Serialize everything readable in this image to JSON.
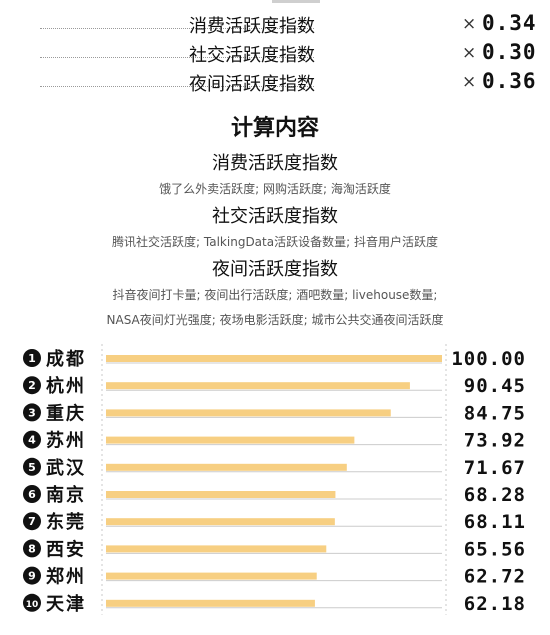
{
  "weights": [
    {
      "name": "消费活跃度指数",
      "x": "×",
      "value": "0.34"
    },
    {
      "name": "社交活跃度指数",
      "x": "×",
      "value": "0.30"
    },
    {
      "name": "夜间活跃度指数",
      "x": "×",
      "value": "0.36"
    }
  ],
  "calc": {
    "title": "计算内容",
    "items": [
      {
        "name": "消费活跃度指数",
        "desc": [
          "饿了么外卖活跃度; 网购活跃度; 海淘活跃度"
        ]
      },
      {
        "name": "社交活跃度指数",
        "desc": [
          "腾讯社交活跃度; TalkingData活跃设备数量; 抖音用户活跃度"
        ]
      },
      {
        "name": "夜间活跃度指数",
        "desc": [
          "抖音夜间打卡量; 夜间出行活跃度; 酒吧数量; livehouse数量;",
          "NASA夜间灯光强度; 夜场电影活跃度; 城市公共交通夜间活跃度"
        ]
      }
    ]
  },
  "chart_data": {
    "type": "bar",
    "orientation": "horizontal",
    "categories": [
      "成都",
      "杭州",
      "重庆",
      "苏州",
      "武汉",
      "南京",
      "东莞",
      "西安",
      "郑州",
      "天津"
    ],
    "ranks": [
      "1",
      "2",
      "3",
      "4",
      "5",
      "6",
      "7",
      "8",
      "9",
      "10"
    ],
    "values": [
      100.0,
      90.45,
      84.75,
      73.92,
      71.67,
      68.28,
      68.11,
      65.56,
      62.72,
      62.18
    ],
    "value_labels": [
      "100.00",
      "90.45",
      "84.75",
      "73.92",
      "71.67",
      "68.28",
      "68.11",
      "65.56",
      "62.72",
      "62.18"
    ],
    "xlim": [
      0,
      100
    ],
    "colors": {
      "bar": "#f7cf82",
      "track": "#cccccc",
      "rank_badge": "#111111"
    },
    "title": "",
    "xlabel": "",
    "ylabel": ""
  }
}
